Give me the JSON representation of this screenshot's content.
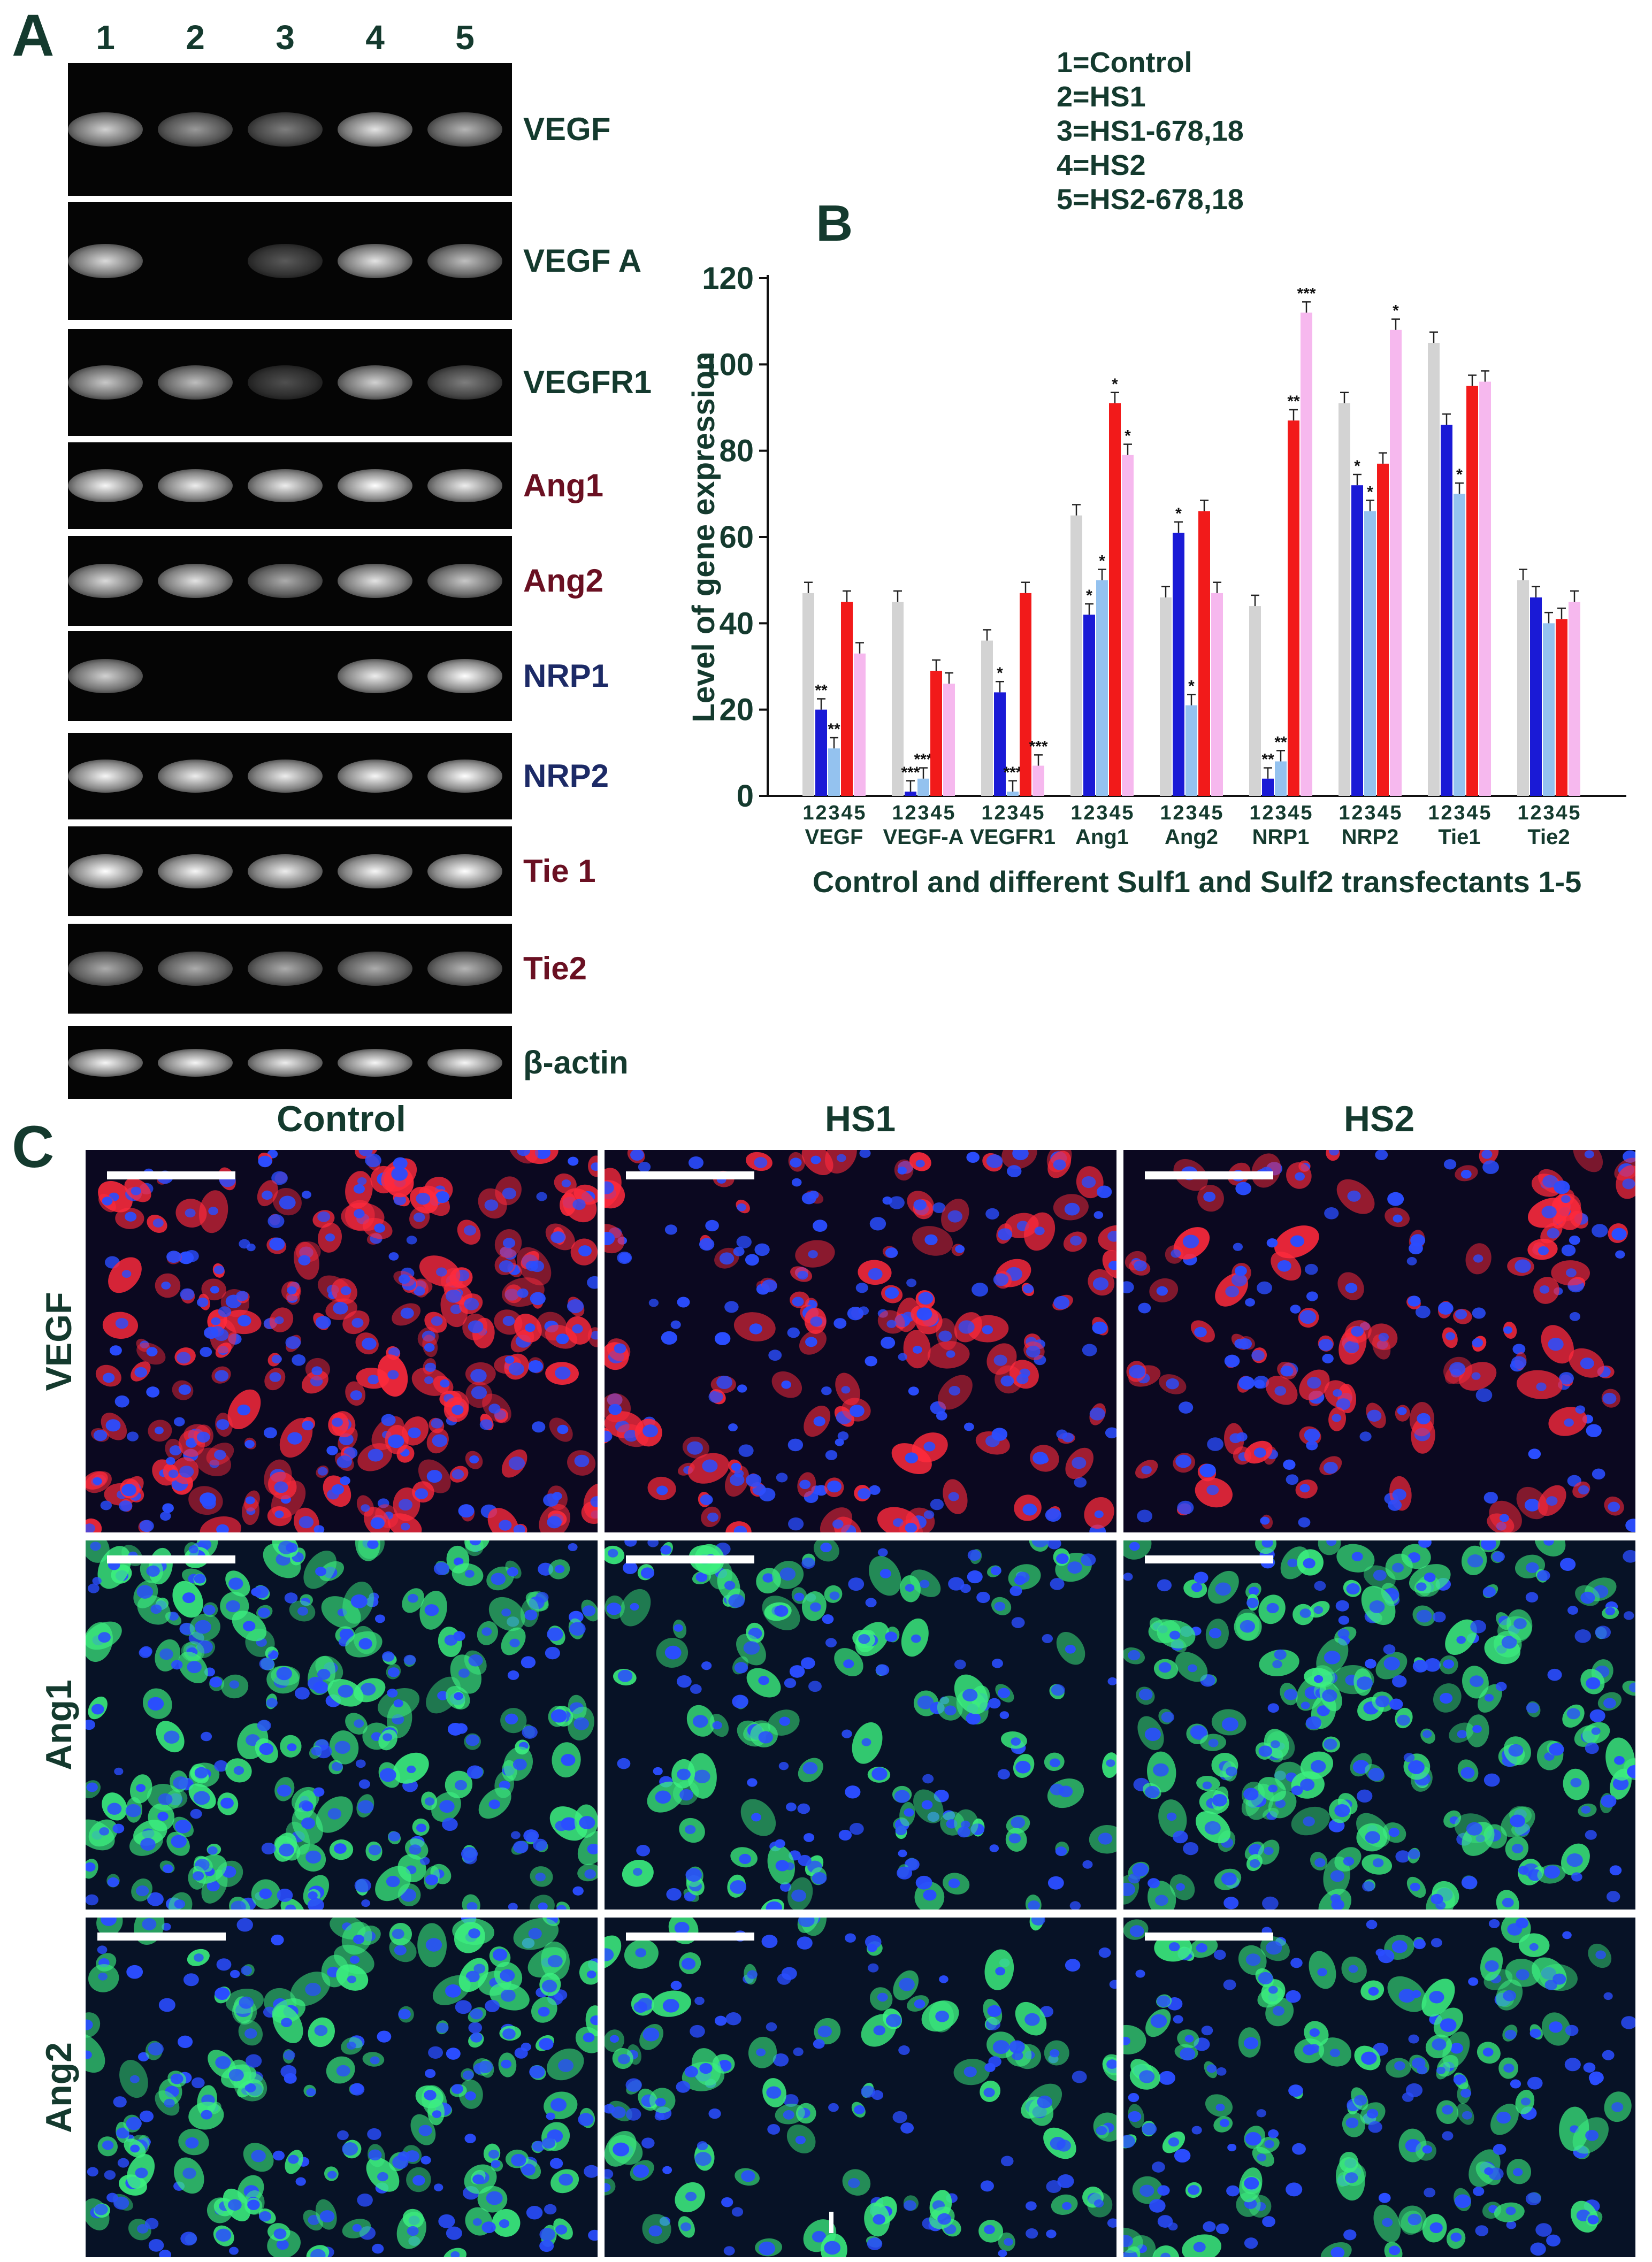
{
  "panels": {
    "a": "A",
    "b": "B",
    "c": "C"
  },
  "lanes": [
    "1",
    "2",
    "3",
    "4",
    "5"
  ],
  "gels": [
    {
      "label": "VEGF",
      "label_color": "#143a2e",
      "band_intensity": [
        0.75,
        0.45,
        0.3,
        0.85,
        0.6
      ]
    },
    {
      "label": "VEGF A",
      "label_color": "#143a2e",
      "band_intensity": [
        0.8,
        0.0,
        0.1,
        0.85,
        0.65
      ]
    },
    {
      "label": "VEGFR1",
      "label_color": "#143a2e",
      "band_intensity": [
        0.7,
        0.65,
        0.05,
        0.75,
        0.3
      ]
    },
    {
      "label": "Ang1",
      "label_color": "#6a1022",
      "band_intensity": [
        0.95,
        0.9,
        0.9,
        1.0,
        0.9
      ]
    },
    {
      "label": "Ang2",
      "label_color": "#6a1022",
      "band_intensity": [
        0.8,
        0.85,
        0.55,
        0.85,
        0.7
      ]
    },
    {
      "label": "NRP1",
      "label_color": "#1c2a66",
      "band_intensity": [
        0.75,
        0.0,
        0.0,
        0.9,
        1.0
      ]
    },
    {
      "label": "NRP2",
      "label_color": "#1c2a66",
      "band_intensity": [
        0.95,
        0.9,
        0.9,
        0.95,
        1.0
      ]
    },
    {
      "label": "Tie 1",
      "label_color": "#6a1022",
      "band_intensity": [
        1.0,
        0.95,
        0.9,
        0.95,
        1.0
      ]
    },
    {
      "label": "Tie2",
      "label_color": "#6a1022",
      "band_intensity": [
        0.55,
        0.55,
        0.55,
        0.55,
        0.6
      ]
    },
    {
      "label": "β-actin",
      "label_color": "#143a2e",
      "band_intensity": [
        0.95,
        0.95,
        0.9,
        0.95,
        0.95
      ]
    }
  ],
  "legend": [
    "1=Control",
    "2=HS1",
    "3=HS1-678,18",
    "4=HS2",
    "5=HS2-678,18"
  ],
  "chart_data": {
    "type": "bar",
    "categories": [
      "VEGF",
      "VEGF-A",
      "VEGFR1",
      "Ang1",
      "Ang2",
      "NRP1",
      "NRP2",
      "Tie1",
      "Tie2"
    ],
    "subcategories": [
      "1",
      "2",
      "3",
      "4",
      "5"
    ],
    "series_colors": [
      "#d3d3d3",
      "#1a1ad6",
      "#94c2ef",
      "#f21a1a",
      "#f6b8ee"
    ],
    "values": [
      [
        47,
        20,
        11,
        45,
        33
      ],
      [
        45,
        1,
        4,
        29,
        26
      ],
      [
        36,
        24,
        1,
        47,
        7
      ],
      [
        65,
        42,
        50,
        91,
        79
      ],
      [
        46,
        61,
        21,
        66,
        47
      ],
      [
        44,
        4,
        8,
        87,
        112
      ],
      [
        91,
        72,
        66,
        77,
        108
      ],
      [
        105,
        86,
        70,
        95,
        96
      ],
      [
        50,
        46,
        40,
        41,
        45
      ]
    ],
    "significance": [
      [
        "",
        "**",
        "**",
        "",
        ""
      ],
      [
        "",
        "***",
        "***",
        "",
        ""
      ],
      [
        "",
        "*",
        "***",
        "",
        "***"
      ],
      [
        "",
        "*",
        "*",
        "*",
        "*"
      ],
      [
        "",
        "*",
        "*",
        "",
        ""
      ],
      [
        "",
        "**",
        "**",
        "**",
        "***"
      ],
      [
        "",
        "*",
        "*",
        "",
        "*"
      ],
      [
        "",
        "",
        "*",
        "",
        ""
      ],
      [
        "",
        "",
        "",
        "",
        ""
      ]
    ],
    "ylabel": "Level of gene expression",
    "xlabel": "Control and different Sulf1 and Sulf2 transfectants 1-5",
    "ylim": [
      0,
      120
    ],
    "yticks": [
      "0",
      "20",
      "40",
      "60",
      "80",
      "100",
      "120"
    ]
  },
  "micrographs": {
    "columns": [
      "Control",
      "HS1",
      "HS2"
    ],
    "rows": [
      {
        "label": "VEGF",
        "stain": "#ff2a3c",
        "density": [
          1.0,
          0.6,
          0.45
        ]
      },
      {
        "label": "Ang1",
        "stain": "#3cf080",
        "density": [
          0.95,
          0.5,
          0.85
        ]
      },
      {
        "label": "Ang2",
        "stain": "#3cf080",
        "density": [
          0.75,
          0.35,
          0.55
        ]
      }
    ],
    "nucleus_color": "#2a4dff"
  }
}
